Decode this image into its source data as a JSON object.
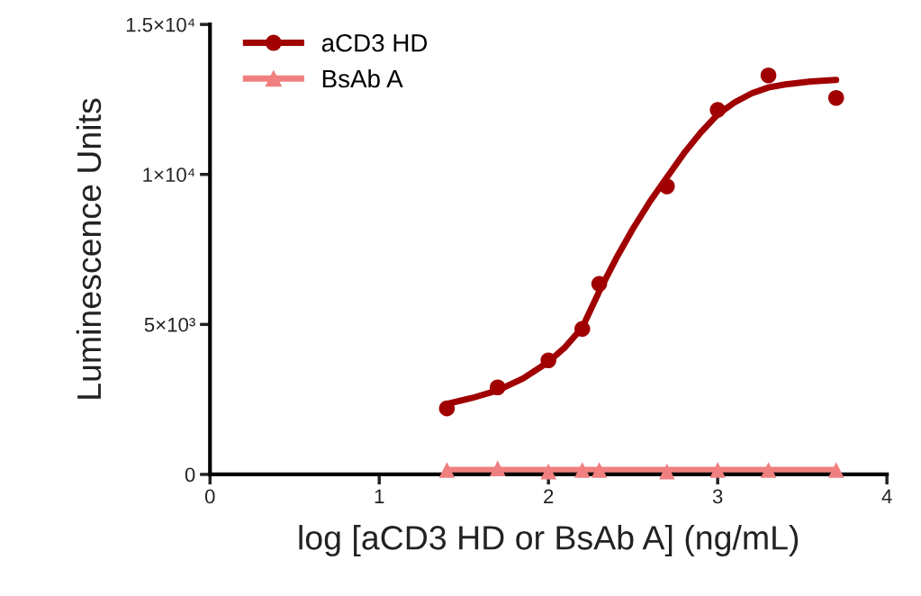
{
  "chart_data": {
    "type": "line",
    "xlabel": "log [aCD3 HD or BsAb A] (ng/mL)",
    "ylabel": "Luminescence Units",
    "xlim": [
      0,
      4
    ],
    "xticks": [
      0,
      1,
      2,
      3,
      4
    ],
    "ylim": [
      0,
      15000
    ],
    "yticks": [
      0,
      {
        "value": 5000,
        "label": "5×10³"
      },
      {
        "value": 10000,
        "label": "1×10⁴"
      },
      {
        "value": 15000,
        "label": "1.5×10⁴"
      }
    ],
    "grid": false,
    "legend": "top left",
    "series": [
      {
        "name": "aCD3 HD",
        "type": "scatter",
        "marker": "circle",
        "color": "#a00000",
        "x": [
          1.4,
          1.7,
          2.0,
          2.2,
          2.3,
          2.7,
          3.0,
          3.3,
          3.7
        ],
        "values": [
          2200,
          2900,
          3800,
          4850,
          6350,
          9600,
          12150,
          13300,
          12550
        ]
      },
      {
        "marker": "none",
        "color": "#a00000",
        "x": [
          1.4,
          1.55,
          1.7,
          1.85,
          2.0,
          2.1,
          2.2,
          2.3,
          2.4,
          2.5,
          2.6,
          2.7,
          2.8,
          2.9,
          3.0,
          3.1,
          3.2,
          3.3,
          3.4,
          3.55,
          3.7
        ],
        "values": [
          2350,
          2550,
          2800,
          3200,
          3750,
          4250,
          4900,
          6100,
          7200,
          8200,
          9100,
          9900,
          10700,
          11400,
          12000,
          12400,
          12700,
          12900,
          13000,
          13100,
          13150
        ]
      },
      {
        "name": "BsAb A",
        "type": "scatter",
        "marker": "triangle",
        "color": "#f08080",
        "x": [
          1.4,
          1.7,
          2.0,
          2.2,
          2.3,
          2.7,
          3.0,
          3.3,
          3.7
        ],
        "values": [
          150,
          200,
          100,
          150,
          150,
          100,
          150,
          150,
          150
        ]
      },
      {
        "marker": "none",
        "color": "#f08080",
        "x": [
          1.4,
          3.7
        ],
        "values": [
          150,
          150
        ]
      }
    ]
  }
}
